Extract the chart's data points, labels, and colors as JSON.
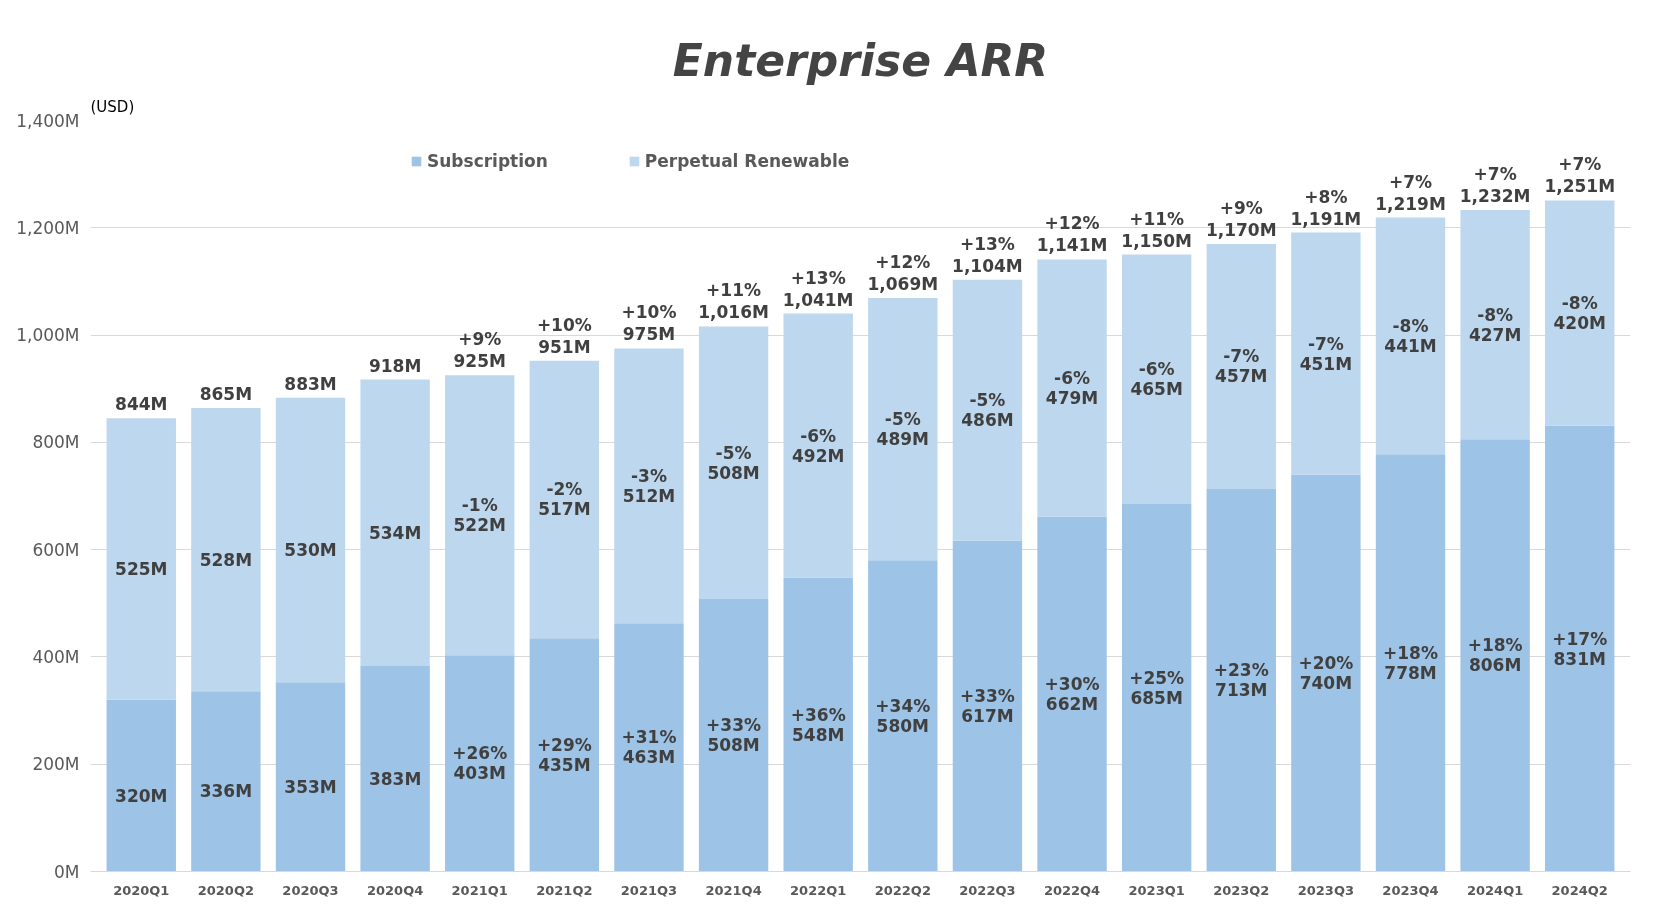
{
  "chart_data": {
    "type": "bar",
    "stacked": true,
    "title": "Enterprise ARR",
    "annotations": [
      "(USD)",
      "+26%",
      "+29%",
      "+31%",
      "+33%",
      "+36%",
      "+34%",
      "+33%",
      "+30%",
      "+25%",
      "+23%",
      "+20%",
      "+18%",
      "+18%",
      "+17%",
      "-1%",
      "-2%",
      "-3%",
      "-5%",
      "-6%",
      "-5%",
      "-5%",
      "-6%",
      "-6%",
      "-7%",
      "-7%",
      "-8%",
      "-8%",
      "-8%",
      {
        "text": "+9%",
        "x": "2021Q1",
        "y": 925
      },
      {
        "text": "+10%",
        "x": "2021Q2",
        "y": 952
      },
      {
        "text": "+10%",
        "x": "2021Q3",
        "y": 975
      },
      {
        "text": "+11%",
        "x": "2021Q4",
        "y": 1016
      },
      {
        "text": "+13%",
        "x": "2022Q1",
        "y": 1040
      },
      {
        "text": "+12%",
        "x": "2022Q2",
        "y": 1069
      },
      {
        "text": "+13%",
        "x": "2022Q3",
        "y": 1103
      },
      {
        "text": "+12%",
        "x": "2022Q4",
        "y": 1141
      },
      {
        "text": "+11%",
        "x": "2023Q1",
        "y": 1150
      },
      {
        "text": "+9%",
        "x": "2023Q2",
        "y": 1170
      },
      {
        "text": "+8%",
        "x": "2023Q3",
        "y": 1191
      },
      {
        "text": "+7%",
        "x": "2023Q4",
        "y": 1219
      },
      {
        "text": "+7%",
        "x": "2024Q1",
        "y": 1233
      },
      {
        "text": "+7%",
        "x": "2024Q2",
        "y": 1251
      }
    ],
    "categories": [
      "2020Q1",
      "2020Q2",
      "2020Q3",
      "2020Q4",
      "2021Q1",
      "2021Q2",
      "2021Q3",
      "2021Q4",
      "2022Q1",
      "2022Q2",
      "2022Q3",
      "2022Q4",
      "2023Q1",
      "2023Q2",
      "2023Q3",
      "2023Q4",
      "2024Q1",
      "2024Q2"
    ],
    "series": [
      {
        "name": "Subscription",
        "color": "#9dc3e6",
        "values": [
          320,
          336,
          353,
          383,
          403,
          435,
          463,
          508,
          548,
          580,
          617,
          662,
          685,
          713,
          740,
          778,
          806,
          831
        ],
        "value_labels": [
          "320M",
          "336M",
          "353M",
          "383M",
          "403M",
          "435M",
          "463M",
          "508M",
          "548M",
          "580M",
          "617M",
          "662M",
          "685M",
          "713M",
          "740M",
          "778M",
          "806M",
          "831M"
        ]
      },
      {
        "name": "Perpetual Renewable",
        "color": "#bdd7ee",
        "values": [
          525,
          528,
          530,
          534,
          522,
          517,
          512,
          508,
          492,
          489,
          486,
          479,
          465,
          457,
          451,
          441,
          427,
          420
        ],
        "value_labels": [
          "525M",
          "528M",
          "530M",
          "534M",
          "522M",
          "517M",
          "512M",
          "508M",
          "492M",
          "489M",
          "486M",
          "479M",
          "465M",
          "457M",
          "451M",
          "441M",
          "427M",
          "420M"
        ]
      }
    ],
    "totals": [
      "844M",
      "865M",
      "883M",
      "918M",
      "925M",
      "951M",
      "975M",
      "1,016M",
      "1,041M",
      "1,069M",
      "1,104M",
      "1,141M",
      "1,150M",
      "1,170M",
      "1,191M",
      "1,219M",
      "1,232M",
      "1,251M"
    ],
    "ylim": [
      0,
      1400
    ],
    "yticks": [
      {
        "value": 0,
        "label": "0M"
      },
      {
        "value": 200,
        "label": "200M"
      },
      {
        "value": 400,
        "label": "400M"
      },
      {
        "value": 600,
        "label": "600M"
      },
      {
        "value": 800,
        "label": "800M"
      },
      {
        "value": 1000,
        "label": "1,000M"
      },
      {
        "value": 1200,
        "label": "1,200M"
      },
      {
        "value": 1400,
        "label": "1,400M"
      }
    ],
    "grid": "y",
    "legend": "top"
  }
}
